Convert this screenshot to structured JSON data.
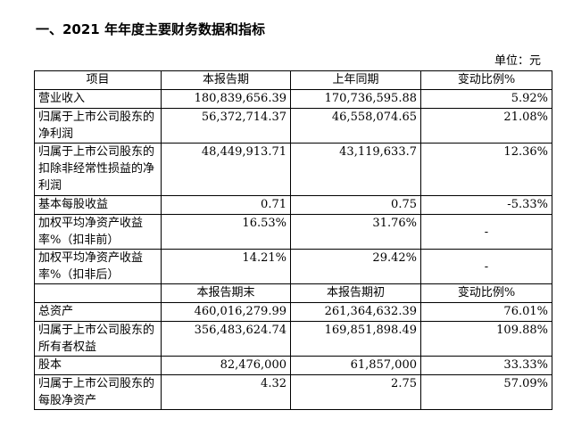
{
  "heading": "一、2021 年年度主要财务数据和指标",
  "unit": "单位：元",
  "header1": [
    "项目",
    "本报告期",
    "上年同期",
    "变动比例%"
  ],
  "rows1": [
    {
      "item": "营业收入",
      "current": "180,839,656.39",
      "prior": "170,736,595.88",
      "change": "5.92%"
    },
    {
      "item": "归属于上市公司股东的净利润",
      "current": "56,372,714.37",
      "prior": "46,558,074.65",
      "change": "21.08%"
    },
    {
      "item": "归属于上市公司股东的扣除非经常性损益的净利润",
      "current": "48,449,913.71",
      "prior": "43,119,633.7",
      "change": "12.36%"
    },
    {
      "item": "基本每股收益",
      "current": "0.71",
      "prior": "0.75",
      "change": "-5.33%"
    },
    {
      "item": "加权平均净资产收益率%（扣非前）",
      "current": "16.53%",
      "prior": "31.76%",
      "change": "-"
    },
    {
      "item": "加权平均净资产收益率%（扣非后）",
      "current": "14.21%",
      "prior": "29.42%",
      "change": "-"
    }
  ],
  "header2": [
    "",
    "本报告期末",
    "本报告期初",
    "变动比例%"
  ],
  "rows2": [
    {
      "item": "总资产",
      "current": "460,016,279.99",
      "prior": "261,364,632.39",
      "change": "76.01%"
    },
    {
      "item": "归属于上市公司股东的所有者权益",
      "current": "356,483,624.74",
      "prior": "169,851,898.49",
      "change": "109.88%"
    },
    {
      "item": "股本",
      "current": "82,476,000",
      "prior": "61,857,000",
      "change": "33.33%"
    },
    {
      "item": "归属于上市公司股东的每股净资产",
      "current": "4.32",
      "prior": "2.75",
      "change": "57.09%"
    }
  ]
}
